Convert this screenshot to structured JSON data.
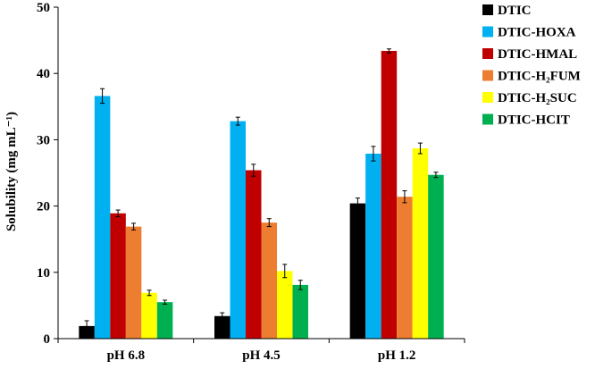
{
  "chart_data": {
    "type": "bar",
    "title": "",
    "xlabel": "",
    "ylabel": "Solubility (mg mL⁻¹)",
    "ylim": [
      0,
      50
    ],
    "yticks": [
      0,
      10,
      20,
      30,
      40,
      50
    ],
    "grid": false,
    "legend_position": "right",
    "error_bars": true,
    "categories": [
      "pH 6.8",
      "pH 4.5",
      "pH 1.2"
    ],
    "series": [
      {
        "name": "DTIC",
        "color": "#000000",
        "values": [
          1.9,
          3.4,
          20.4
        ],
        "errors": [
          0.8,
          0.5,
          0.8
        ]
      },
      {
        "name": "DTIC-HOXA",
        "color": "#00B0F0",
        "values": [
          36.6,
          32.8,
          27.9
        ],
        "errors": [
          1.1,
          0.6,
          1.1
        ]
      },
      {
        "name": "DTIC-HMAL",
        "color": "#C00000",
        "values": [
          18.9,
          25.4,
          43.4
        ],
        "errors": [
          0.5,
          0.9,
          0.3
        ]
      },
      {
        "name": "DTIC-H₂FUM",
        "color": "#ED7D31",
        "values": [
          16.9,
          17.5,
          21.4
        ],
        "errors": [
          0.5,
          0.6,
          0.9
        ]
      },
      {
        "name": "DTIC-H₂SUC",
        "color": "#FFFF00",
        "values": [
          6.9,
          10.2,
          28.7
        ],
        "errors": [
          0.4,
          1.0,
          0.8
        ]
      },
      {
        "name": "DTIC-HCIT",
        "color": "#00B050",
        "values": [
          5.5,
          8.1,
          24.7
        ],
        "errors": [
          0.3,
          0.7,
          0.4
        ]
      }
    ]
  }
}
